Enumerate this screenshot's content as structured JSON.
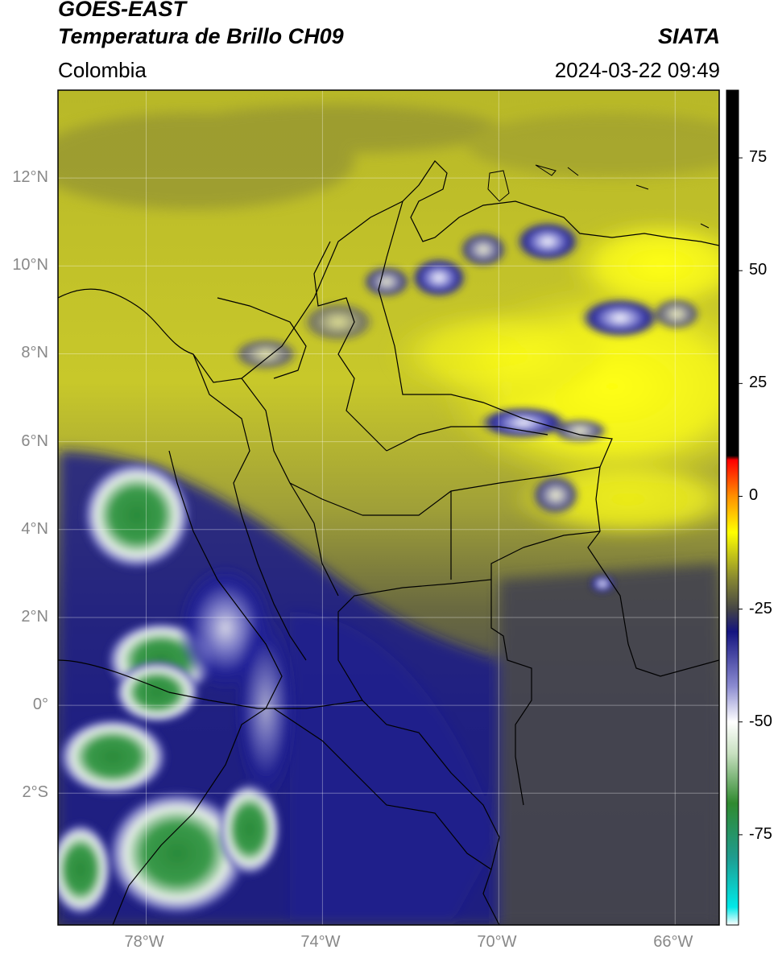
{
  "header": {
    "satellite": "GOES-EAST",
    "product": "Temperatura de Brillo CH09",
    "brand": "SIATA",
    "region": "Colombia",
    "timestamp": "2024-03-22 09:49"
  },
  "map": {
    "lat_range": [
      -5,
      14
    ],
    "lon_range": [
      -80,
      -65
    ],
    "lat_ticks": [
      {
        "value": 12,
        "label": "12°N"
      },
      {
        "value": 10,
        "label": "10°N"
      },
      {
        "value": 8,
        "label": "8°N"
      },
      {
        "value": 6,
        "label": "6°N"
      },
      {
        "value": 4,
        "label": "4°N"
      },
      {
        "value": 2,
        "label": "2°N"
      },
      {
        "value": 0,
        "label": "0°"
      },
      {
        "value": -2,
        "label": "2°S"
      }
    ],
    "lon_ticks": [
      {
        "value": -78,
        "label": "78°W"
      },
      {
        "value": -74,
        "label": "74°W"
      },
      {
        "value": -70,
        "label": "70°W"
      },
      {
        "value": -66,
        "label": "66°W"
      }
    ],
    "grid": true
  },
  "colorbar": {
    "min": -95,
    "max": 90,
    "ticks": [
      {
        "value": 75,
        "label": "75"
      },
      {
        "value": 50,
        "label": "50"
      },
      {
        "value": 25,
        "label": "25"
      },
      {
        "value": 0,
        "label": "0"
      },
      {
        "value": -25,
        "label": "-25"
      },
      {
        "value": -50,
        "label": "-50"
      },
      {
        "value": -75,
        "label": "-75"
      }
    ],
    "stops": [
      {
        "value": -95,
        "color": "#ffffff"
      },
      {
        "value": -91,
        "color": "#00e8e8"
      },
      {
        "value": -80,
        "color": "#1f9c8f"
      },
      {
        "value": -68,
        "color": "#2f8a2f"
      },
      {
        "value": -57,
        "color": "#c8e0c0"
      },
      {
        "value": -50,
        "color": "#ffffff"
      },
      {
        "value": -42,
        "color": "#8a8ad0"
      },
      {
        "value": -30,
        "color": "#141480"
      },
      {
        "value": -25,
        "color": "#454545"
      },
      {
        "value": -18,
        "color": "#8a8a30"
      },
      {
        "value": -8,
        "color": "#ffff00"
      },
      {
        "value": 0,
        "color": "#ff9000"
      },
      {
        "value": 8,
        "color": "#ff0000"
      },
      {
        "value": 9,
        "color": "#000000"
      },
      {
        "value": 90,
        "color": "#000000"
      }
    ]
  }
}
